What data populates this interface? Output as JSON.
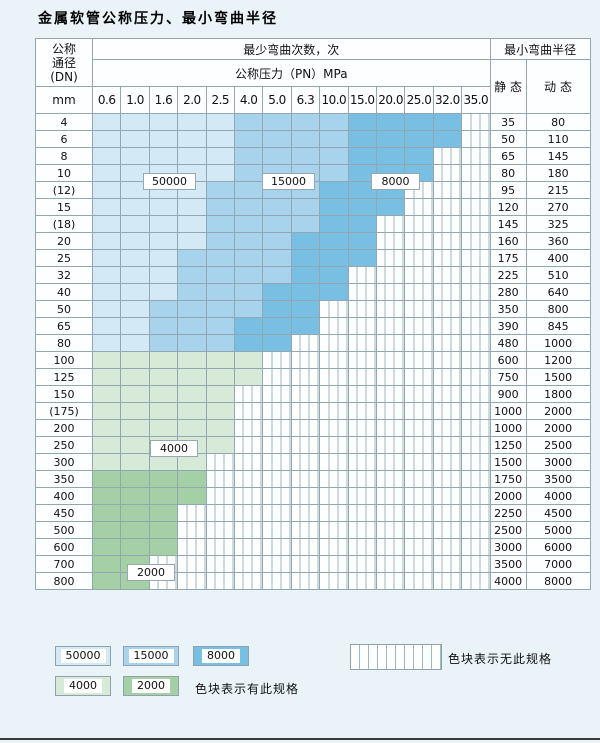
{
  "page": {
    "title": "金属软管公称压力、最小弯曲半径"
  },
  "colors": {
    "c50000": "#d3e9f5",
    "c15000": "#a8d3ec",
    "c8000": "#79bfe3",
    "c4000": "#d7ead7",
    "c2000": "#a5cfa5",
    "stripe_line": "#9fb7c2",
    "grid_line": "#93a7b3"
  },
  "table": {
    "header": {
      "dn_lines": [
        "公称",
        "通径",
        "(DN)"
      ],
      "dn_unit": "mm",
      "cycles_title": "最少弯曲次数，次",
      "pressure_title": "公称压力（PN）MPa",
      "radius_title": "最小弯曲半径",
      "static_label": "静 态",
      "dynamic_label": "动 态",
      "pressure_columns": [
        "0.6",
        "1.0",
        "1.6",
        "2.0",
        "2.5",
        "4.0",
        "5.0",
        "6.3",
        "10.0",
        "15.0",
        "20.0",
        "25.0",
        "32.0",
        "35.0"
      ]
    },
    "rows": [
      {
        "dn": "4",
        "static": "35",
        "dynamic": "80",
        "cells": [
          "50000",
          "50000",
          "50000",
          "50000",
          "50000",
          "15000",
          "15000",
          "15000",
          "15000",
          "8000",
          "8000",
          "8000",
          "8000",
          "none"
        ]
      },
      {
        "dn": "6",
        "static": "50",
        "dynamic": "110",
        "cells": [
          "50000",
          "50000",
          "50000",
          "50000",
          "50000",
          "15000",
          "15000",
          "15000",
          "15000",
          "8000",
          "8000",
          "8000",
          "8000",
          "none"
        ]
      },
      {
        "dn": "8",
        "static": "65",
        "dynamic": "145",
        "cells": [
          "50000",
          "50000",
          "50000",
          "50000",
          "50000",
          "15000",
          "15000",
          "15000",
          "15000",
          "8000",
          "8000",
          "8000",
          "none",
          "none"
        ]
      },
      {
        "dn": "10",
        "static": "80",
        "dynamic": "180",
        "cells": [
          "50000",
          "50000",
          "50000",
          "50000",
          "50000",
          "15000",
          "15000",
          "15000",
          "15000",
          "8000",
          "8000",
          "8000",
          "none",
          "none"
        ]
      },
      {
        "dn": "(12)",
        "static": "95",
        "dynamic": "215",
        "cells": [
          "50000",
          "50000",
          "50000",
          "50000",
          "15000",
          "15000",
          "15000",
          "15000",
          "8000",
          "8000",
          "8000",
          "none",
          "none",
          "none"
        ]
      },
      {
        "dn": "15",
        "static": "120",
        "dynamic": "270",
        "cells": [
          "50000",
          "50000",
          "50000",
          "50000",
          "15000",
          "15000",
          "15000",
          "15000",
          "8000",
          "8000",
          "8000",
          "none",
          "none",
          "none"
        ]
      },
      {
        "dn": "(18)",
        "static": "145",
        "dynamic": "325",
        "cells": [
          "50000",
          "50000",
          "50000",
          "50000",
          "15000",
          "15000",
          "15000",
          "15000",
          "8000",
          "8000",
          "none",
          "none",
          "none",
          "none"
        ]
      },
      {
        "dn": "20",
        "static": "160",
        "dynamic": "360",
        "cells": [
          "50000",
          "50000",
          "50000",
          "50000",
          "15000",
          "15000",
          "15000",
          "8000",
          "8000",
          "8000",
          "none",
          "none",
          "none",
          "none"
        ]
      },
      {
        "dn": "25",
        "static": "175",
        "dynamic": "400",
        "cells": [
          "50000",
          "50000",
          "50000",
          "15000",
          "15000",
          "15000",
          "15000",
          "8000",
          "8000",
          "8000",
          "none",
          "none",
          "none",
          "none"
        ]
      },
      {
        "dn": "32",
        "static": "225",
        "dynamic": "510",
        "cells": [
          "50000",
          "50000",
          "50000",
          "15000",
          "15000",
          "15000",
          "15000",
          "8000",
          "8000",
          "none",
          "none",
          "none",
          "none",
          "none"
        ]
      },
      {
        "dn": "40",
        "static": "280",
        "dynamic": "640",
        "cells": [
          "50000",
          "50000",
          "50000",
          "15000",
          "15000",
          "15000",
          "8000",
          "8000",
          "8000",
          "none",
          "none",
          "none",
          "none",
          "none"
        ]
      },
      {
        "dn": "50",
        "static": "350",
        "dynamic": "800",
        "cells": [
          "50000",
          "50000",
          "15000",
          "15000",
          "15000",
          "15000",
          "8000",
          "8000",
          "none",
          "none",
          "none",
          "none",
          "none",
          "none"
        ]
      },
      {
        "dn": "65",
        "static": "390",
        "dynamic": "845",
        "cells": [
          "50000",
          "50000",
          "15000",
          "15000",
          "15000",
          "8000",
          "8000",
          "8000",
          "none",
          "none",
          "none",
          "none",
          "none",
          "none"
        ]
      },
      {
        "dn": "80",
        "static": "480",
        "dynamic": "1000",
        "cells": [
          "50000",
          "50000",
          "15000",
          "15000",
          "15000",
          "8000",
          "8000",
          "none",
          "none",
          "none",
          "none",
          "none",
          "none",
          "none"
        ]
      },
      {
        "dn": "100",
        "static": "600",
        "dynamic": "1200",
        "cells": [
          "4000",
          "4000",
          "4000",
          "4000",
          "4000",
          "4000",
          "none",
          "none",
          "none",
          "none",
          "none",
          "none",
          "none",
          "none"
        ]
      },
      {
        "dn": "125",
        "static": "750",
        "dynamic": "1500",
        "cells": [
          "4000",
          "4000",
          "4000",
          "4000",
          "4000",
          "4000",
          "none",
          "none",
          "none",
          "none",
          "none",
          "none",
          "none",
          "none"
        ]
      },
      {
        "dn": "150",
        "static": "900",
        "dynamic": "1800",
        "cells": [
          "4000",
          "4000",
          "4000",
          "4000",
          "4000",
          "none",
          "none",
          "none",
          "none",
          "none",
          "none",
          "none",
          "none",
          "none"
        ]
      },
      {
        "dn": "(175)",
        "static": "1000",
        "dynamic": "2000",
        "cells": [
          "4000",
          "4000",
          "4000",
          "4000",
          "4000",
          "none",
          "none",
          "none",
          "none",
          "none",
          "none",
          "none",
          "none",
          "none"
        ]
      },
      {
        "dn": "200",
        "static": "1000",
        "dynamic": "2000",
        "cells": [
          "4000",
          "4000",
          "4000",
          "4000",
          "4000",
          "none",
          "none",
          "none",
          "none",
          "none",
          "none",
          "none",
          "none",
          "none"
        ]
      },
      {
        "dn": "250",
        "static": "1250",
        "dynamic": "2500",
        "cells": [
          "4000",
          "4000",
          "4000",
          "4000",
          "4000",
          "none",
          "none",
          "none",
          "none",
          "none",
          "none",
          "none",
          "none",
          "none"
        ]
      },
      {
        "dn": "300",
        "static": "1500",
        "dynamic": "3000",
        "cells": [
          "4000",
          "4000",
          "4000",
          "4000",
          "none",
          "none",
          "none",
          "none",
          "none",
          "none",
          "none",
          "none",
          "none",
          "none"
        ]
      },
      {
        "dn": "350",
        "static": "1750",
        "dynamic": "3500",
        "cells": [
          "2000",
          "2000",
          "2000",
          "2000",
          "none",
          "none",
          "none",
          "none",
          "none",
          "none",
          "none",
          "none",
          "none",
          "none"
        ]
      },
      {
        "dn": "400",
        "static": "2000",
        "dynamic": "4000",
        "cells": [
          "2000",
          "2000",
          "2000",
          "2000",
          "none",
          "none",
          "none",
          "none",
          "none",
          "none",
          "none",
          "none",
          "none",
          "none"
        ]
      },
      {
        "dn": "450",
        "static": "2250",
        "dynamic": "4500",
        "cells": [
          "2000",
          "2000",
          "2000",
          "none",
          "none",
          "none",
          "none",
          "none",
          "none",
          "none",
          "none",
          "none",
          "none",
          "none"
        ]
      },
      {
        "dn": "500",
        "static": "2500",
        "dynamic": "5000",
        "cells": [
          "2000",
          "2000",
          "2000",
          "none",
          "none",
          "none",
          "none",
          "none",
          "none",
          "none",
          "none",
          "none",
          "none",
          "none"
        ]
      },
      {
        "dn": "600",
        "static": "3000",
        "dynamic": "6000",
        "cells": [
          "2000",
          "2000",
          "2000",
          "none",
          "none",
          "none",
          "none",
          "none",
          "none",
          "none",
          "none",
          "none",
          "none",
          "none"
        ]
      },
      {
        "dn": "700",
        "static": "3500",
        "dynamic": "7000",
        "cells": [
          "2000",
          "2000",
          "none",
          "none",
          "none",
          "none",
          "none",
          "none",
          "none",
          "none",
          "none",
          "none",
          "none",
          "none"
        ]
      },
      {
        "dn": "800",
        "static": "4000",
        "dynamic": "8000",
        "cells": [
          "2000",
          "2000",
          "none",
          "none",
          "none",
          "none",
          "none",
          "none",
          "none",
          "none",
          "none",
          "none",
          "none",
          "none"
        ]
      }
    ]
  },
  "overlays": [
    {
      "label": "50000"
    },
    {
      "label": "15000"
    },
    {
      "label": "8000"
    },
    {
      "label": "4000"
    },
    {
      "label": "2000"
    }
  ],
  "legend": {
    "items": [
      {
        "label": "50000"
      },
      {
        "label": "15000"
      },
      {
        "label": "8000"
      },
      {
        "label": "4000"
      },
      {
        "label": "2000"
      }
    ],
    "has_spec_note": "色块表示有此规格",
    "no_spec_note": "色块表示无此规格"
  }
}
